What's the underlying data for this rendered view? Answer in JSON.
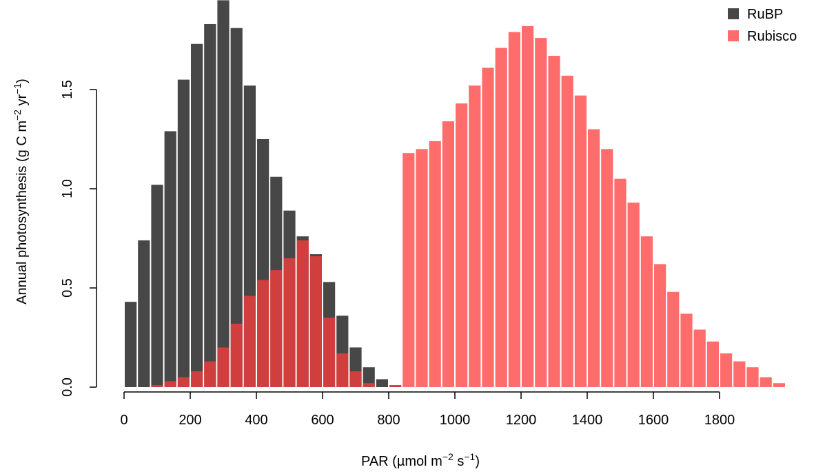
{
  "chart_data": {
    "type": "bar",
    "title": "",
    "xlabel": {
      "prefix": "PAR (",
      "mu": "µ",
      "unit": "mol m",
      "sup1": "−2",
      "mid": " s",
      "sup2": "−1",
      "suffix": ")"
    },
    "ylabel": {
      "prefix": "Annual photosynthesis (g C m",
      "sup1": "−2",
      "mid": " yr",
      "sup2": "−1",
      "suffix": ")"
    },
    "xlim": [
      0,
      2000
    ],
    "ylim": [
      0,
      2.0
    ],
    "xticks": [
      0,
      200,
      400,
      600,
      800,
      1000,
      1200,
      1400,
      1600,
      1800
    ],
    "xtick_labels": [
      "0",
      "200",
      "400",
      "600",
      "800",
      "1000",
      "1200",
      "1400",
      "1600",
      "1800"
    ],
    "yticks": [
      0.0,
      0.5,
      1.0,
      1.5
    ],
    "ytick_labels": [
      "0.0",
      "0.5",
      "1.0",
      "1.5"
    ],
    "bin_width": 40,
    "legend_position": "top-right",
    "grid": false,
    "series": [
      {
        "name": "RuBP",
        "color": "#333333",
        "opacity": 0.9,
        "bin_starts": [
          0,
          40,
          80,
          120,
          160,
          200,
          240,
          280,
          320,
          360,
          400,
          440,
          480,
          520,
          560,
          600,
          640,
          680,
          720,
          760,
          800
        ],
        "values": [
          0.43,
          0.74,
          1.02,
          1.29,
          1.55,
          1.73,
          1.83,
          1.95,
          1.81,
          1.52,
          1.25,
          1.06,
          0.89,
          0.76,
          0.67,
          0.53,
          0.36,
          0.2,
          0.1,
          0.04,
          0.01
        ]
      },
      {
        "name": "Rubisco",
        "color": "#ff3b3b",
        "opacity": 0.75,
        "bin_starts": [
          80,
          120,
          160,
          200,
          240,
          280,
          320,
          360,
          400,
          440,
          480,
          520,
          560,
          600,
          640,
          680,
          720,
          760,
          800,
          840,
          880,
          920,
          960,
          1000,
          1040,
          1080,
          1120,
          1160,
          1200,
          1240,
          1280,
          1320,
          1360,
          1400,
          1440,
          1480,
          1520,
          1560,
          1600,
          1640,
          1680,
          1720,
          1760,
          1800,
          1840,
          1880,
          1920,
          1960
        ],
        "values": [
          0.01,
          0.03,
          0.05,
          0.08,
          0.13,
          0.2,
          0.32,
          0.46,
          0.54,
          0.59,
          0.65,
          0.74,
          0.66,
          0.35,
          0.17,
          0.08,
          0.02,
          0.0,
          0.01,
          1.18,
          1.2,
          1.24,
          1.34,
          1.43,
          1.52,
          1.61,
          1.71,
          1.79,
          1.82,
          1.76,
          1.67,
          1.57,
          1.47,
          1.3,
          1.2,
          1.05,
          0.93,
          0.76,
          0.62,
          0.48,
          0.37,
          0.29,
          0.23,
          0.17,
          0.13,
          0.1,
          0.05,
          0.02
        ]
      }
    ]
  }
}
